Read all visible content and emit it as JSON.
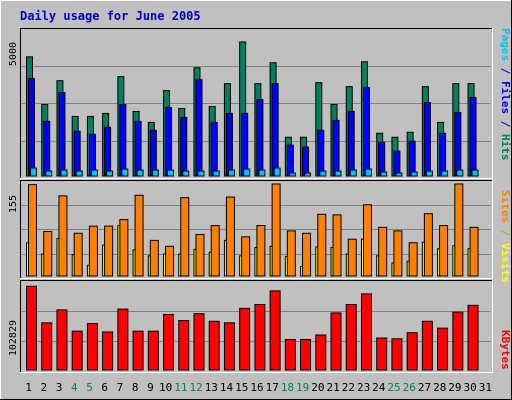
{
  "chart_data": [
    {
      "type": "bar",
      "title": "Daily usage for June 2005",
      "categories": [
        "1",
        "2",
        "3",
        "4",
        "5",
        "6",
        "7",
        "8",
        "9",
        "10",
        "11",
        "12",
        "13",
        "14",
        "15",
        "16",
        "17",
        "18",
        "19",
        "20",
        "21",
        "22",
        "23",
        "24",
        "25",
        "26",
        "27",
        "28",
        "29",
        "30",
        "31"
      ],
      "weekend_days": [
        "4",
        "5",
        "11",
        "12",
        "18",
        "19",
        "25",
        "26"
      ],
      "ytick_label": "5000",
      "ylabel_parts": [
        {
          "text": "Pages",
          "color": "#00c0ff"
        },
        {
          "text": " / ",
          "color": "#0000cc"
        },
        {
          "text": "Files",
          "color": "#0000ff"
        },
        {
          "text": " / ",
          "color": "#0000cc"
        },
        {
          "text": "Hits",
          "color": "#00805c"
        }
      ],
      "ylim": [
        0,
        7250
      ],
      "series": [
        {
          "name": "Hits",
          "color": "#00805c",
          "values": [
            6000,
            3600,
            4800,
            3000,
            3000,
            3150,
            5000,
            3250,
            2700,
            4300,
            3400,
            5450,
            3500,
            4650,
            6750,
            4650,
            5700,
            1950,
            1950,
            4700,
            3600,
            4500,
            5750,
            2150,
            1950,
            2200,
            4500,
            2700,
            4650,
            4650,
            0
          ]
        },
        {
          "name": "Files",
          "color": "#0000ff",
          "values": [
            4900,
            2750,
            4200,
            2250,
            2100,
            2450,
            3600,
            2750,
            2300,
            3450,
            2950,
            4850,
            2700,
            3150,
            3150,
            3850,
            4650,
            1550,
            1450,
            2300,
            2800,
            3250,
            4450,
            1700,
            1250,
            1750,
            3700,
            2150,
            3200,
            3950,
            0
          ]
        },
        {
          "name": "Pages",
          "color": "#00c0ff",
          "values": [
            400,
            250,
            300,
            250,
            300,
            250,
            350,
            300,
            300,
            300,
            250,
            250,
            250,
            300,
            350,
            300,
            400,
            150,
            150,
            250,
            250,
            300,
            350,
            200,
            150,
            200,
            250,
            250,
            300,
            300,
            0
          ]
        }
      ]
    },
    {
      "type": "bar",
      "categories": [
        "1",
        "2",
        "3",
        "4",
        "5",
        "6",
        "7",
        "8",
        "9",
        "10",
        "11",
        "12",
        "13",
        "14",
        "15",
        "16",
        "17",
        "18",
        "19",
        "20",
        "21",
        "22",
        "23",
        "24",
        "25",
        "26",
        "27",
        "28",
        "29",
        "30",
        "31"
      ],
      "ytick_label": "155",
      "ylabel_parts": [
        {
          "text": "Sites",
          "color": "#ff8000"
        },
        {
          "text": " / ",
          "color": "#c0a000"
        },
        {
          "text": "Visits",
          "color": "#ffff00"
        }
      ],
      "ylim": [
        0,
        155
      ],
      "series": [
        {
          "name": "Visits",
          "color": "#ffff00",
          "values": [
            56,
            37,
            63,
            36,
            18,
            52,
            85,
            44,
            34,
            37,
            37,
            45,
            40,
            60,
            34,
            48,
            50,
            33,
            16,
            49,
            48,
            37,
            62,
            34,
            22,
            25,
            57,
            46,
            51,
            46,
            0
          ]
        },
        {
          "name": "Sites",
          "color": "#ff8000",
          "values": [
            154,
            75,
            135,
            72,
            84,
            84,
            95,
            136,
            60,
            50,
            132,
            70,
            85,
            133,
            66,
            85,
            155,
            76,
            72,
            104,
            103,
            62,
            120,
            82,
            76,
            56,
            105,
            85,
            155,
            82,
            0
          ]
        }
      ]
    },
    {
      "type": "bar",
      "categories": [
        "1",
        "2",
        "3",
        "4",
        "5",
        "6",
        "7",
        "8",
        "9",
        "10",
        "11",
        "12",
        "13",
        "14",
        "15",
        "16",
        "17",
        "18",
        "19",
        "20",
        "21",
        "22",
        "23",
        "24",
        "25",
        "26",
        "27",
        "28",
        "29",
        "30",
        "31"
      ],
      "ytick_label": "102829",
      "ylabel_parts": [
        {
          "text": "KBytes",
          "color": "#ff0000"
        }
      ],
      "ylim": [
        0,
        113000
      ],
      "series": [
        {
          "name": "KBytes",
          "color": "#ff0000",
          "values": [
            110000,
            62000,
            79000,
            51000,
            61000,
            50000,
            80000,
            51000,
            51000,
            73000,
            65000,
            74000,
            64000,
            62000,
            81000,
            86000,
            104000,
            40000,
            40000,
            46000,
            75000,
            86000,
            100000,
            42000,
            41000,
            49000,
            64000,
            55000,
            76000,
            85000,
            0
          ]
        }
      ]
    }
  ]
}
